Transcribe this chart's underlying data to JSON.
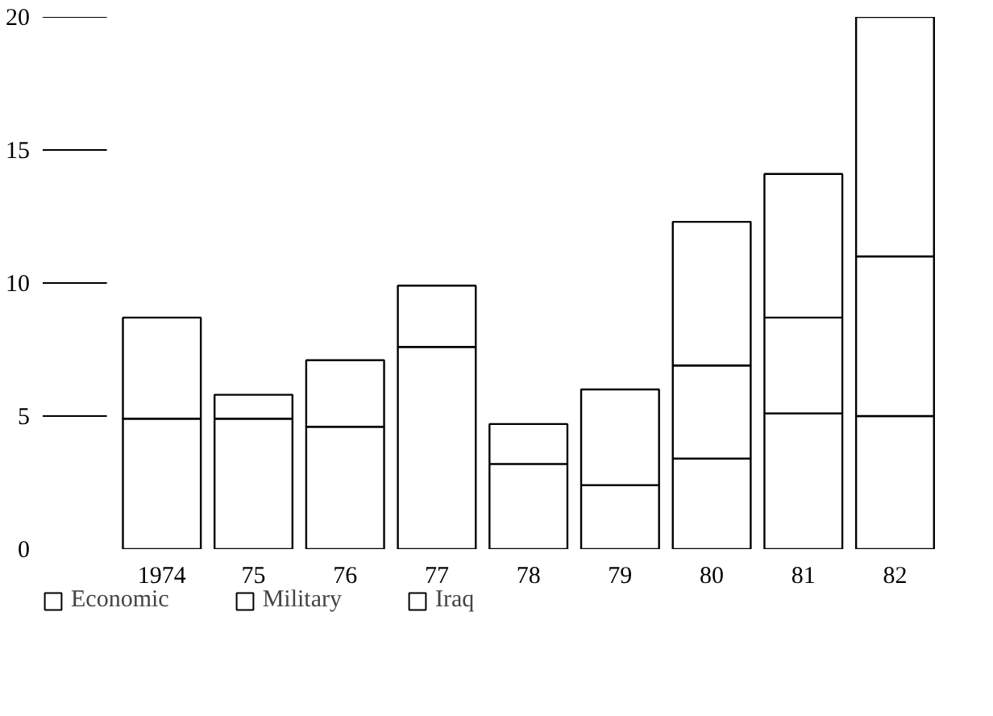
{
  "chart_data": {
    "type": "bar",
    "stacked": true,
    "categories": [
      "1974",
      "75",
      "76",
      "77",
      "78",
      "79",
      "80",
      "81",
      "82"
    ],
    "series": [
      {
        "name": "Economic",
        "color": "#ffffff",
        "values": [
          4.9,
          4.9,
          4.6,
          7.6,
          3.2,
          2.4,
          3.4,
          5.1,
          5.0
        ]
      },
      {
        "name": "Military",
        "color": "#ffffff",
        "values": [
          3.8,
          0.9,
          2.5,
          2.3,
          1.5,
          3.6,
          3.5,
          3.6,
          6.0
        ]
      },
      {
        "name": "Iraq",
        "color": "#ffffff",
        "values": [
          null,
          null,
          null,
          null,
          null,
          null,
          5.4,
          5.4,
          9.0
        ]
      }
    ],
    "ylim": [
      0,
      20
    ],
    "yticks": [
      0,
      5,
      10,
      15,
      20
    ],
    "grid": false,
    "legend": "bottom"
  }
}
